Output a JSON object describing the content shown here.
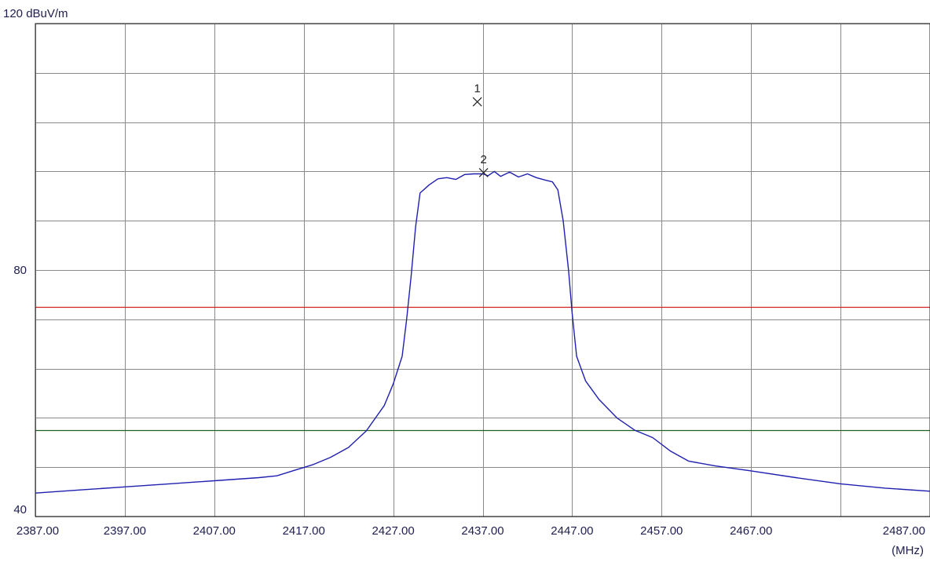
{
  "chart_data": {
    "type": "line",
    "y_unit_label": "120 dBuV/m",
    "x_unit_label": "(MHz)",
    "xlim": [
      2387,
      2487
    ],
    "ylim": [
      40,
      120
    ],
    "grid": true,
    "x_ticks": [
      2387,
      2397,
      2407,
      2417,
      2427,
      2437,
      2447,
      2457,
      2467,
      2477,
      2487
    ],
    "x_tick_labels": [
      "2387.00",
      "2397.00",
      "2407.00",
      "2417.00",
      "2427.00",
      "2437.00",
      "2447.00",
      "2457.00",
      "2467.00",
      "",
      "2487.00"
    ],
    "y_ticks": [
      40,
      48,
      56,
      64,
      72,
      80,
      88,
      96,
      104,
      112,
      120
    ],
    "y_tick_labels": [
      "40",
      "",
      "",
      "",
      "",
      "80",
      "",
      "",
      "",
      "",
      ""
    ],
    "limit_lines": [
      {
        "y": 74,
        "color": "#d02020"
      },
      {
        "y": 54,
        "color": "#206020"
      }
    ],
    "series": [
      {
        "color": "#2020b0",
        "points": [
          [
            2387.0,
            43.8
          ],
          [
            2392.0,
            44.3
          ],
          [
            2397.0,
            44.8
          ],
          [
            2402.0,
            45.3
          ],
          [
            2407.0,
            45.8
          ],
          [
            2412.0,
            46.3
          ],
          [
            2414.0,
            46.6
          ],
          [
            2416.0,
            47.5
          ],
          [
            2418.0,
            48.4
          ],
          [
            2420.0,
            49.6
          ],
          [
            2422.0,
            51.2
          ],
          [
            2424.0,
            53.9
          ],
          [
            2426.0,
            58.0
          ],
          [
            2427.0,
            61.5
          ],
          [
            2428.0,
            66.0
          ],
          [
            2428.5,
            72.0
          ],
          [
            2429.0,
            79.0
          ],
          [
            2429.5,
            87.0
          ],
          [
            2430.0,
            92.5
          ],
          [
            2431.0,
            93.8
          ],
          [
            2432.0,
            94.8
          ],
          [
            2433.0,
            95.0
          ],
          [
            2434.0,
            94.7
          ],
          [
            2435.0,
            95.5
          ],
          [
            2436.0,
            95.6
          ],
          [
            2437.0,
            95.6
          ],
          [
            2437.6,
            95.3
          ],
          [
            2438.3,
            96.0
          ],
          [
            2439.0,
            95.2
          ],
          [
            2440.0,
            95.9
          ],
          [
            2441.0,
            95.1
          ],
          [
            2442.0,
            95.6
          ],
          [
            2443.0,
            95.0
          ],
          [
            2444.0,
            94.6
          ],
          [
            2444.8,
            94.3
          ],
          [
            2445.4,
            93.0
          ],
          [
            2446.0,
            88.0
          ],
          [
            2446.6,
            80.0
          ],
          [
            2447.0,
            73.0
          ],
          [
            2447.5,
            66.0
          ],
          [
            2448.5,
            62.0
          ],
          [
            2450.0,
            59.0
          ],
          [
            2452.0,
            56.0
          ],
          [
            2454.0,
            54.0
          ],
          [
            2456.0,
            52.8
          ],
          [
            2458.0,
            50.6
          ],
          [
            2460.0,
            49.0
          ],
          [
            2463.0,
            48.2
          ],
          [
            2467.0,
            47.4
          ],
          [
            2472.0,
            46.3
          ],
          [
            2477.0,
            45.3
          ],
          [
            2482.0,
            44.6
          ],
          [
            2487.0,
            44.1
          ]
        ]
      }
    ],
    "markers": [
      {
        "label": "1",
        "x": 2436.4,
        "y": 107.3
      },
      {
        "label": "2",
        "x": 2437.1,
        "y": 95.8
      }
    ]
  }
}
